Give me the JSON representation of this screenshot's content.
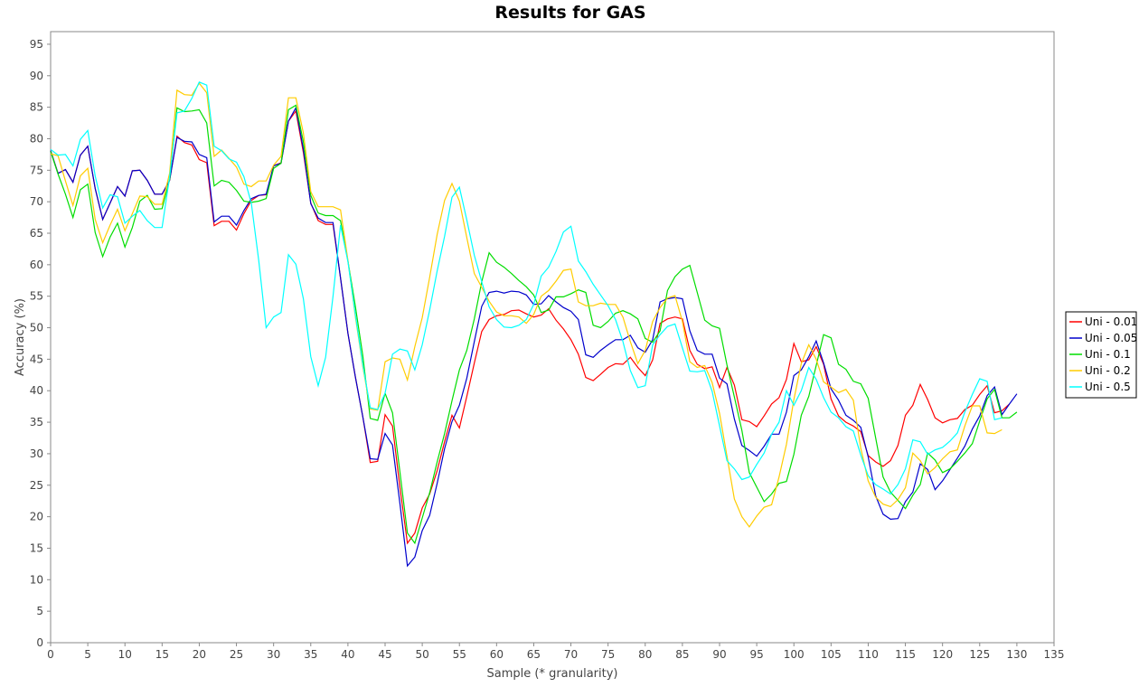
{
  "chart_data": {
    "type": "line",
    "title": "Results for GAS",
    "xlabel": "Sample (* granularity)",
    "ylabel": "Accuracy (%)",
    "xlim": [
      0,
      135
    ],
    "ylim": [
      0,
      97
    ],
    "x_ticks": [
      0,
      5,
      10,
      15,
      20,
      25,
      30,
      35,
      40,
      45,
      50,
      55,
      60,
      65,
      70,
      75,
      80,
      85,
      90,
      95,
      100,
      105,
      110,
      115,
      120,
      125,
      130,
      135
    ],
    "y_ticks": [
      0,
      5,
      10,
      15,
      20,
      25,
      30,
      35,
      40,
      45,
      50,
      55,
      60,
      65,
      70,
      75,
      80,
      85,
      90,
      95
    ],
    "grid": false,
    "legend_position": "right",
    "series": [
      {
        "name": "Uni - 0.01",
        "color": "#ff0000",
        "values": [
          78.1,
          74.5,
          75.1,
          73.1,
          77.4,
          78.8,
          72.1,
          67.2,
          69.8,
          72.4,
          70.9,
          74.9,
          75.0,
          73.4,
          71.2,
          71.2,
          73.4,
          80.4,
          79.4,
          79.0,
          76.7,
          76.2,
          66.2,
          66.9,
          66.9,
          65.5,
          68.1,
          70.2,
          71.0,
          71.1,
          75.7,
          76.2,
          82.8,
          84.4,
          77.8,
          69.8,
          67.0,
          66.4,
          66.4,
          57.9,
          49.1,
          42.2,
          35.9,
          28.6,
          28.8,
          36.2,
          34.4,
          24.7,
          15.8,
          17.4,
          21.4,
          23.6,
          27.3,
          31.9,
          36.1,
          34.1,
          39.1,
          44.4,
          49.4,
          51.3,
          51.9,
          52.1,
          52.7,
          52.8,
          52.2,
          51.7,
          52.0,
          53.0,
          51.2,
          49.8,
          48.1,
          45.8,
          42.1,
          41.6,
          42.6,
          43.7,
          44.3,
          44.2,
          45.3,
          43.7,
          42.4,
          44.9,
          50.7,
          51.4,
          51.7,
          51.4,
          46.4,
          44.2,
          43.5,
          43.8,
          40.5,
          43.7,
          40.9,
          35.4,
          35.1,
          34.3,
          36.0,
          37.9,
          38.9,
          41.8,
          47.5,
          44.6,
          44.9,
          47.0,
          44.2,
          38.7,
          36.0,
          35.0,
          34.4,
          33.5,
          29.7,
          28.7,
          28.0,
          28.9,
          31.3,
          36.1,
          37.7,
          41.0,
          38.6,
          35.7,
          34.9,
          35.4,
          35.6,
          37.0,
          37.7,
          39.4,
          40.8,
          36.5,
          36.8,
          37.9
        ]
      },
      {
        "name": "Uni - 0.05",
        "color": "#0000cc",
        "values": [
          78.1,
          74.5,
          75.1,
          73.1,
          77.4,
          78.8,
          72.1,
          67.2,
          69.8,
          72.4,
          70.9,
          74.9,
          75.0,
          73.4,
          71.2,
          71.2,
          73.4,
          80.2,
          79.6,
          79.5,
          77.5,
          77.0,
          66.8,
          67.7,
          67.7,
          66.3,
          68.6,
          70.5,
          71.0,
          71.2,
          75.7,
          76.1,
          82.8,
          84.9,
          78.3,
          69.7,
          67.4,
          66.7,
          66.7,
          57.9,
          49.1,
          42.2,
          35.9,
          29.2,
          29.1,
          33.2,
          31.4,
          22.1,
          12.2,
          13.6,
          17.8,
          20.2,
          25.3,
          30.8,
          35.1,
          37.7,
          42.0,
          47.8,
          53.4,
          55.6,
          55.8,
          55.5,
          55.8,
          55.7,
          55.2,
          53.7,
          53.8,
          55.1,
          54.1,
          53.2,
          52.6,
          51.3,
          45.7,
          45.3,
          46.4,
          47.3,
          48.1,
          48.1,
          48.8,
          46.8,
          46.1,
          48.1,
          54.1,
          54.6,
          54.8,
          54.6,
          49.5,
          46.4,
          45.8,
          45.8,
          42.0,
          41.1,
          35.5,
          31.3,
          30.5,
          29.6,
          31.2,
          33.1,
          33.1,
          36.6,
          42.4,
          43.3,
          45.4,
          47.9,
          44.4,
          40.3,
          38.5,
          36.1,
          35.3,
          34.2,
          29.5,
          23.3,
          20.4,
          19.6,
          19.7,
          22.4,
          23.9,
          28.4,
          27.5,
          24.3,
          25.7,
          27.5,
          29.3,
          31.2,
          33.9,
          36.0,
          39.2,
          40.6,
          36.2,
          37.9,
          39.5
        ]
      },
      {
        "name": "Uni - 0.1",
        "color": "#00dd00",
        "values": [
          78.0,
          74.4,
          71.2,
          67.5,
          71.9,
          72.8,
          65.1,
          61.3,
          64.4,
          66.6,
          62.8,
          65.9,
          70.1,
          71.0,
          68.8,
          68.9,
          73.5,
          84.9,
          84.3,
          84.4,
          84.6,
          82.5,
          72.5,
          73.4,
          73.1,
          71.8,
          70.1,
          69.9,
          70.1,
          70.5,
          75.3,
          76.1,
          84.6,
          85.3,
          79.5,
          71.0,
          68.2,
          67.8,
          67.8,
          67.0,
          60.6,
          53.4,
          45.6,
          35.6,
          35.3,
          39.6,
          36.5,
          27.1,
          17.4,
          15.8,
          19.8,
          23.8,
          28.7,
          33.2,
          38.4,
          43.3,
          46.4,
          51.4,
          57.3,
          61.9,
          60.4,
          59.6,
          58.6,
          57.5,
          56.5,
          55.2,
          52.4,
          52.8,
          54.9,
          54.9,
          55.4,
          56.0,
          55.6,
          50.4,
          50.0,
          51.0,
          52.3,
          52.7,
          52.2,
          51.4,
          48.3,
          47.7,
          49.5,
          55.9,
          58.1,
          59.3,
          59.9,
          55.6,
          51.2,
          50.3,
          49.9,
          44.1,
          39.0,
          33.7,
          27.0,
          24.7,
          22.4,
          23.6,
          25.3,
          25.6,
          29.9,
          36.1,
          39.1,
          44.0,
          48.9,
          48.4,
          44.2,
          43.4,
          41.5,
          41.1,
          38.8,
          32.5,
          26.3,
          23.9,
          22.6,
          21.3,
          23.4,
          25.1,
          30.1,
          29.0,
          27.0,
          27.6,
          28.8,
          30.1,
          31.6,
          35.2,
          38.7,
          40.2,
          35.7,
          35.7,
          36.6
        ]
      },
      {
        "name": "Uni - 0.2",
        "color": "#ffcc00",
        "values": [
          77.6,
          77.3,
          73.3,
          69.4,
          74.1,
          75.3,
          67.2,
          63.5,
          66.3,
          68.8,
          65.4,
          68.1,
          70.9,
          70.8,
          69.6,
          69.6,
          74.5,
          87.7,
          87.0,
          86.9,
          88.8,
          87.3,
          77.2,
          78.2,
          76.9,
          75.5,
          72.8,
          72.4,
          73.3,
          73.3,
          75.8,
          77.2,
          86.5,
          86.5,
          80.9,
          71.6,
          69.2,
          69.2,
          69.2,
          68.7,
          60.7,
          51.8,
          43.9,
          37.1,
          36.9,
          44.6,
          45.2,
          45.0,
          41.7,
          47.0,
          51.6,
          58.0,
          64.8,
          70.2,
          72.9,
          70.1,
          64.3,
          58.6,
          56.4,
          54.2,
          52.5,
          51.9,
          51.9,
          51.7,
          50.7,
          52.1,
          55.0,
          55.9,
          57.4,
          59.1,
          59.3,
          54.1,
          53.5,
          53.5,
          53.9,
          53.7,
          53.7,
          51.7,
          47.8,
          44.3,
          46.4,
          51.0,
          53.2,
          54.7,
          55.1,
          51.0,
          44.6,
          43.7,
          44.0,
          41.3,
          36.4,
          29.6,
          22.8,
          20.0,
          18.4,
          20.1,
          21.5,
          21.9,
          26.3,
          31.5,
          38.6,
          44.3,
          47.3,
          45.0,
          41.4,
          40.6,
          39.7,
          40.2,
          38.5,
          30.9,
          25.7,
          23.1,
          22.0,
          21.6,
          22.7,
          24.6,
          30.1,
          28.9,
          26.8,
          27.8,
          29.2,
          30.3,
          30.6,
          34.4,
          37.6,
          37.6,
          33.3,
          33.2,
          33.8
        ]
      },
      {
        "name": "Uni - 0.5",
        "color": "#00ffff",
        "values": [
          78.3,
          77.4,
          77.5,
          75.7,
          79.9,
          81.3,
          74.1,
          69.0,
          71.1,
          70.8,
          66.6,
          67.7,
          68.6,
          67.0,
          65.9,
          65.9,
          73.9,
          84.1,
          84.4,
          86.4,
          89.0,
          88.5,
          78.8,
          78.1,
          76.8,
          76.3,
          74.0,
          69.8,
          60.7,
          50.0,
          51.7,
          52.4,
          61.6,
          60.1,
          54.6,
          45.4,
          40.8,
          45.3,
          55.0,
          66.3,
          60.5,
          52.1,
          44.2,
          37.3,
          37.0,
          39.6,
          45.8,
          46.6,
          46.3,
          43.3,
          47.3,
          52.8,
          59.0,
          64.5,
          70.7,
          72.3,
          67.1,
          61.5,
          57.3,
          53.3,
          51.3,
          50.1,
          50.0,
          50.4,
          51.3,
          53.7,
          58.2,
          59.6,
          62.1,
          65.2,
          66.1,
          60.6,
          58.9,
          56.9,
          55.2,
          53.5,
          51.3,
          47.8,
          43.2,
          40.5,
          40.8,
          47.3,
          48.9,
          50.2,
          50.6,
          46.8,
          43.1,
          43.0,
          43.2,
          39.9,
          34.4,
          28.9,
          27.6,
          25.9,
          26.3,
          28.3,
          30.1,
          33.1,
          35.0,
          40.0,
          37.7,
          40.0,
          43.7,
          41.8,
          38.9,
          36.6,
          35.7,
          34.3,
          33.6,
          29.8,
          26.5,
          25.1,
          24.4,
          23.6,
          25.1,
          27.6,
          32.2,
          31.9,
          29.9,
          30.6,
          31.0,
          32.0,
          33.3,
          36.6,
          39.4,
          41.9,
          41.5,
          35.4,
          35.7
        ]
      }
    ]
  }
}
